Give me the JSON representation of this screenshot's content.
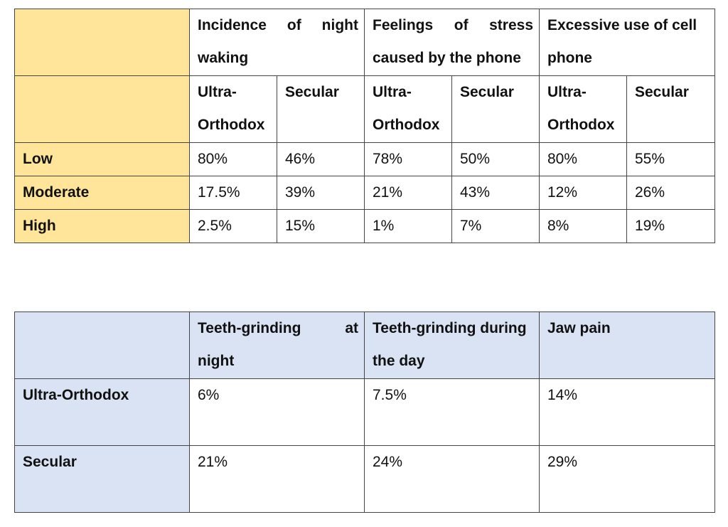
{
  "table1": {
    "groups": [
      "Incidence of night waking",
      "Feelings of stress caused by the phone",
      "Excessive use of cell phone"
    ],
    "subheaders": [
      "Ultra-Orthodox",
      "Secular",
      "Ultra-Orthodox",
      "Secular",
      "Ultra-Orthodox",
      "Secular"
    ],
    "rows": [
      {
        "label": "Low",
        "values": [
          "80%",
          "46%",
          "78%",
          "50%",
          "80%",
          "55%"
        ]
      },
      {
        "label": "Moderate",
        "values": [
          "17.5%",
          "39%",
          "21%",
          "43%",
          "12%",
          "26%"
        ]
      },
      {
        "label": "High",
        "values": [
          "2.5%",
          "15%",
          "1%",
          "7%",
          "8%",
          "19%"
        ]
      }
    ]
  },
  "table2": {
    "headers": [
      "Teeth-grinding at night",
      "Teeth-grinding during the day",
      "Jaw pain"
    ],
    "rows": [
      {
        "label": "Ultra-Orthodox",
        "values": [
          "6%",
          "7.5%",
          "14%"
        ]
      },
      {
        "label": "Secular",
        "values": [
          "21%",
          "24%",
          "29%"
        ]
      }
    ]
  },
  "colors": {
    "table1_header_bg": "#ffe599",
    "table2_header_bg": "#dae3f3",
    "border": "#444444"
  }
}
